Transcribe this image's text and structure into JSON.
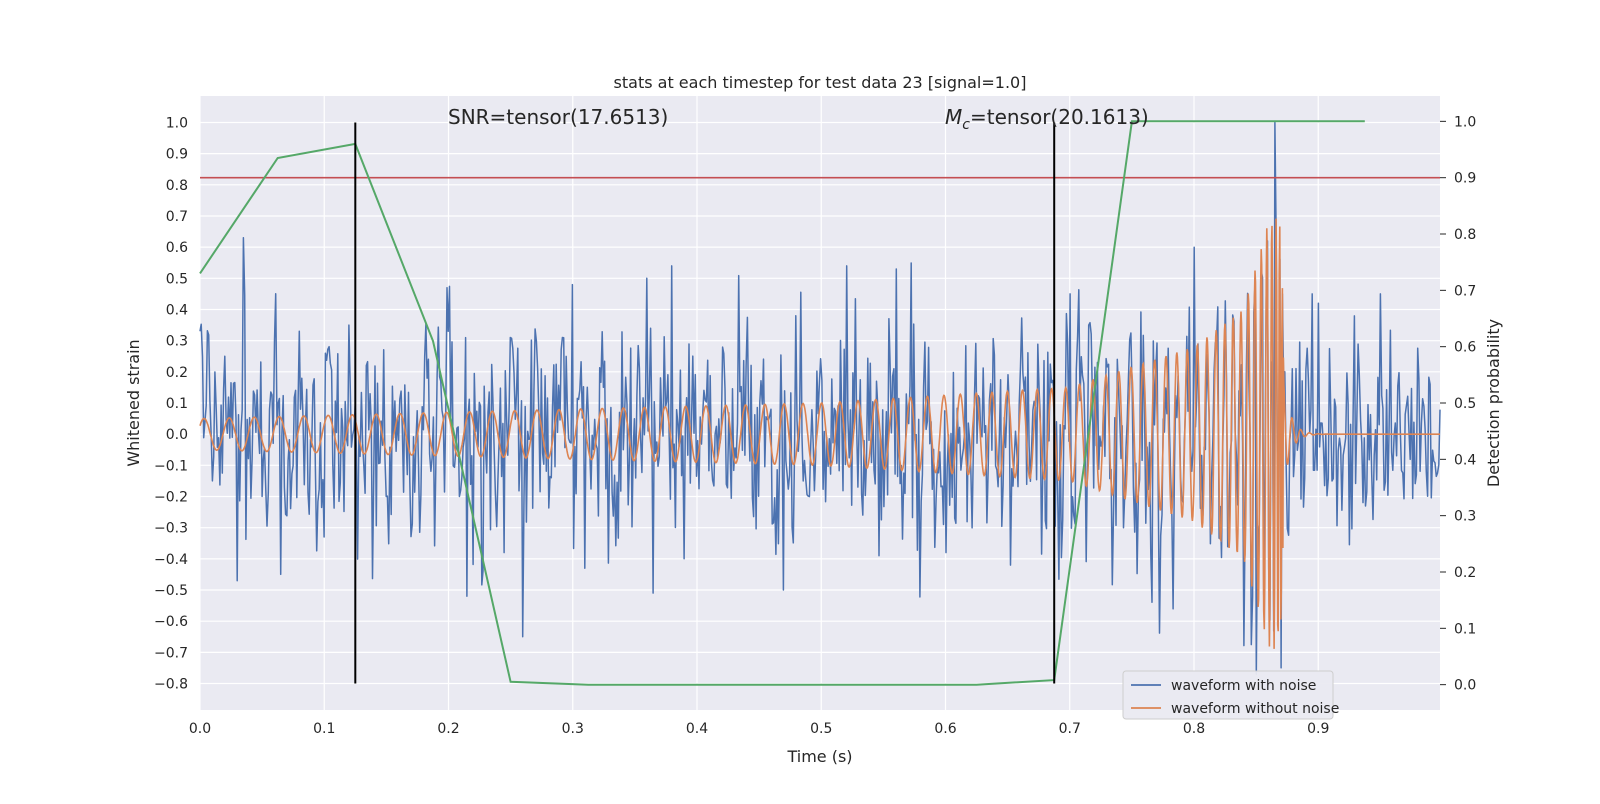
{
  "chart_data": {
    "type": "line",
    "title": "stats at each timestep for test data 23 [signal=1.0]",
    "xlabel": "Time (s)",
    "ylabel_left": "Whitened strain",
    "ylabel_right": "Detection probability",
    "xlim": [
      0.0,
      0.998
    ],
    "ylim_left": [
      -0.885,
      1.085
    ],
    "ylim_right": [
      -0.045,
      1.045
    ],
    "xticks": [
      "0.0",
      "0.1",
      "0.2",
      "0.3",
      "0.4",
      "0.5",
      "0.6",
      "0.7",
      "0.8",
      "0.9"
    ],
    "yticks_left": [
      "1.0",
      "0.9",
      "0.8",
      "0.7",
      "0.6",
      "0.5",
      "0.4",
      "0.3",
      "0.2",
      "0.1",
      "0.0",
      "−0.1",
      "−0.2",
      "−0.3",
      "−0.4",
      "−0.5",
      "−0.6",
      "−0.7",
      "−0.8"
    ],
    "yticks_right": [
      "1.0",
      "0.9",
      "0.8",
      "0.7",
      "0.6",
      "0.5",
      "0.4",
      "0.3",
      "0.2",
      "0.1",
      "0.0"
    ],
    "grid": true,
    "legend_position": "lower-right",
    "annotations": {
      "snr_prefix": "SNR=tensor(17.6513)",
      "mc_symbol": "M",
      "mc_subscript": "c",
      "mc_suffix": "=tensor(20.1613)"
    },
    "snr_marker_x": 0.125,
    "mc_marker_x": 0.6875,
    "threshold_probability": 0.9,
    "colors": {
      "noisy": "#4c72b0",
      "clean": "#dd8452",
      "probability": "#55a868",
      "threshold": "#c44e52",
      "marker": "#000000",
      "background": "#eaeaf2",
      "grid": "#ffffff"
    },
    "series": [
      {
        "name": "waveform with noise",
        "axis": "left",
        "note_x_range": [
          0.0,
          1.0
        ],
        "envelope_points": [
          [
            0.0,
            0.33
          ],
          [
            0.01,
            -0.15
          ],
          [
            0.02,
            0.25
          ],
          [
            0.03,
            -0.47
          ],
          [
            0.035,
            0.63
          ],
          [
            0.05,
            -0.2
          ],
          [
            0.06,
            0.3
          ],
          [
            0.065,
            -0.45
          ],
          [
            0.08,
            0.33
          ],
          [
            0.1,
            -0.33
          ],
          [
            0.12,
            0.35
          ],
          [
            0.15,
            -0.2
          ],
          [
            0.2,
            0.33
          ],
          [
            0.215,
            -0.52
          ],
          [
            0.25,
            0.31
          ],
          [
            0.26,
            -0.65
          ],
          [
            0.3,
            0.48
          ],
          [
            0.31,
            -0.43
          ],
          [
            0.36,
            0.5
          ],
          [
            0.365,
            -0.51
          ],
          [
            0.38,
            0.54
          ],
          [
            0.39,
            -0.4
          ],
          [
            0.48,
            0.38
          ],
          [
            0.47,
            -0.5
          ],
          [
            0.52,
            0.54
          ],
          [
            0.56,
            0.53
          ],
          [
            0.6,
            -0.38
          ],
          [
            0.7,
            0.45
          ],
          [
            0.8,
            0.6
          ],
          [
            0.85,
            -0.77
          ],
          [
            0.865,
            1.0
          ],
          [
            0.9,
            0.42
          ],
          [
            0.95,
            0.45
          ],
          [
            0.99,
            0.16
          ]
        ]
      },
      {
        "name": "waveform without noise",
        "axis": "left",
        "amplitude_points": [
          [
            0.0,
            0.05
          ],
          [
            0.5,
            0.1
          ],
          [
            0.7,
            0.15
          ],
          [
            0.8,
            0.28
          ],
          [
            0.84,
            0.4
          ],
          [
            0.86,
            0.68
          ],
          [
            0.87,
            0.7
          ],
          [
            0.875,
            0.0
          ],
          [
            0.998,
            0.0
          ]
        ],
        "merger_time": 0.872
      },
      {
        "name": "detection probability",
        "axis": "right",
        "x": [
          0.0,
          0.0625,
          0.125,
          0.1875,
          0.25,
          0.3125,
          0.375,
          0.4375,
          0.5,
          0.5625,
          0.625,
          0.6875,
          0.75,
          0.8125,
          0.875,
          0.9375
        ],
        "y": [
          0.73,
          0.935,
          0.96,
          0.61,
          0.005,
          0.0,
          0.0,
          0.0,
          0.0,
          0.0,
          0.0,
          0.008,
          1.0,
          1.0,
          1.0,
          1.0
        ]
      }
    ]
  }
}
